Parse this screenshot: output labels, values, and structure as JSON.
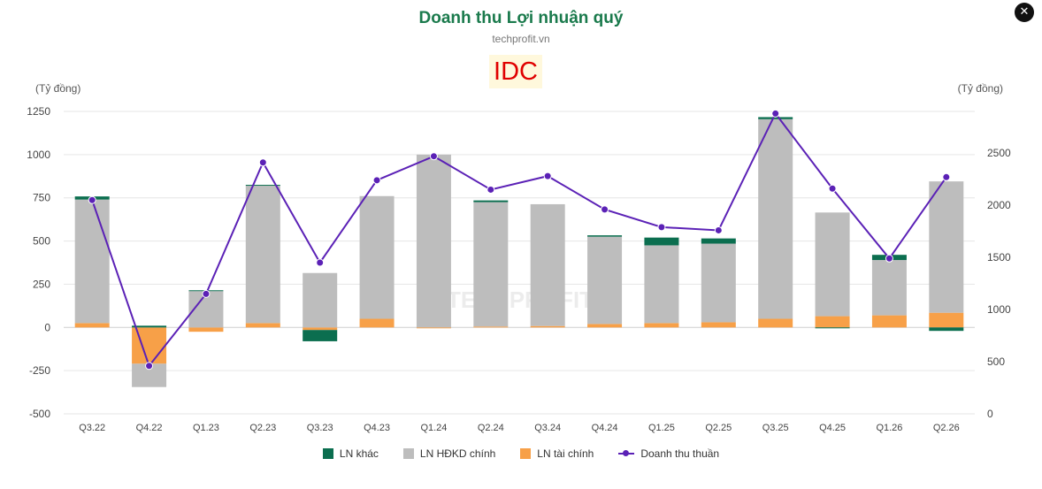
{
  "title": "Doanh thu Lợi nhuận quý",
  "subtitle": "techprofit.vn",
  "ticker": "IDC",
  "close_icon": "✕",
  "watermark": "TECHPROFIT",
  "colors": {
    "ln_khac": "#0b6e4f",
    "ln_hdkd": "#bdbdbd",
    "ln_tai_chinh": "#f7a048",
    "doanh_thu": "#5b21b6",
    "title": "#1a7a4c",
    "ticker_text": "#e00000"
  },
  "chart_data": {
    "type": "bar",
    "stacked": true,
    "categories": [
      "Q3.22",
      "Q4.22",
      "Q1.23",
      "Q2.23",
      "Q3.23",
      "Q4.23",
      "Q1.24",
      "Q2.24",
      "Q3.24",
      "Q4.24",
      "Q1.25",
      "Q2.25",
      "Q3.25",
      "Q4.25",
      "Q1.26",
      "Q2.26"
    ],
    "ylabel_left": "(Tỷ đồng)",
    "ylabel_right": "(Tỷ đồng)",
    "ylim_left": [
      -500,
      1250
    ],
    "yticks_left": [
      -500,
      -250,
      0,
      250,
      500,
      750,
      1000,
      1250
    ],
    "ylim_right": [
      0,
      2900
    ],
    "yticks_right": [
      0,
      500,
      1000,
      1500,
      2000,
      2500
    ],
    "grid": true,
    "legend_position": "bottom",
    "series": [
      {
        "name": "LN khác",
        "axis": "left",
        "kind": "bar",
        "values": [
          18,
          10,
          5,
          5,
          -65,
          0,
          0,
          10,
          0,
          8,
          45,
          30,
          12,
          -5,
          30,
          -20
        ]
      },
      {
        "name": "LN HĐKD chính",
        "axis": "left",
        "kind": "bar",
        "values": [
          715,
          -135,
          210,
          795,
          315,
          710,
          1000,
          720,
          705,
          505,
          450,
          455,
          1155,
          600,
          320,
          760
        ]
      },
      {
        "name": "LN tài chính",
        "axis": "left",
        "kind": "bar",
        "values": [
          25,
          -210,
          -25,
          25,
          -15,
          50,
          -5,
          5,
          8,
          20,
          25,
          30,
          50,
          65,
          70,
          85
        ]
      },
      {
        "name": "Doanh thu thuần",
        "axis": "right",
        "kind": "line",
        "values": [
          2050,
          460,
          1150,
          2410,
          1450,
          2240,
          2470,
          2150,
          2280,
          1960,
          1790,
          1760,
          2880,
          2160,
          1490,
          2270
        ]
      }
    ]
  }
}
